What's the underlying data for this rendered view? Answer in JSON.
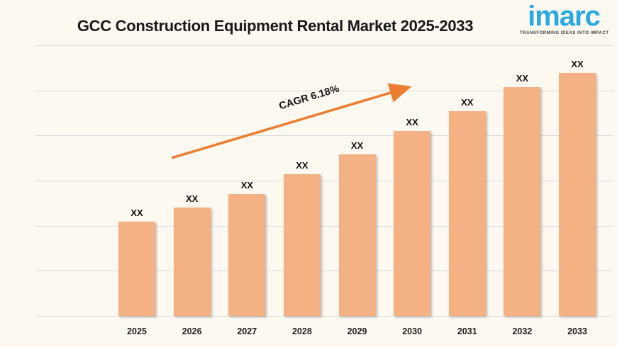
{
  "title": "GCC Construction Equipment Rental Market 2025-2033",
  "logo": {
    "brand": "imarc",
    "tagline": "TRANSFORMING IDEAS INTO IMPACT",
    "brand_color": "#29A9E1",
    "tagline_color": "#3B3B3B"
  },
  "annotation": {
    "cagr_label": "CAGR 6.18%"
  },
  "chart_data": {
    "type": "bar",
    "title": "GCC Construction Equipment Rental Market 2025-2033",
    "categories": [
      "2025",
      "2026",
      "2027",
      "2028",
      "2029",
      "2030",
      "2031",
      "2032",
      "2033"
    ],
    "values": [
      "XX",
      "XX",
      "XX",
      "XX",
      "XX",
      "XX",
      "XX",
      "XX",
      "XX"
    ],
    "value_labels_masked": true,
    "bar_heights_pct": [
      34.8,
      40.1,
      45.0,
      52.4,
      59.7,
      68.3,
      75.7,
      84.6,
      89.8
    ],
    "cagr": "6.18%",
    "xlabel": "",
    "ylabel": "",
    "grid": true,
    "gridline_count": 7,
    "legend": "none",
    "colors": {
      "background": "#FDF8F0",
      "bar": "#F4B183",
      "gridline": "#D9D9D9",
      "arrow": "#ED7D31",
      "text": "#1A1A1A"
    }
  }
}
